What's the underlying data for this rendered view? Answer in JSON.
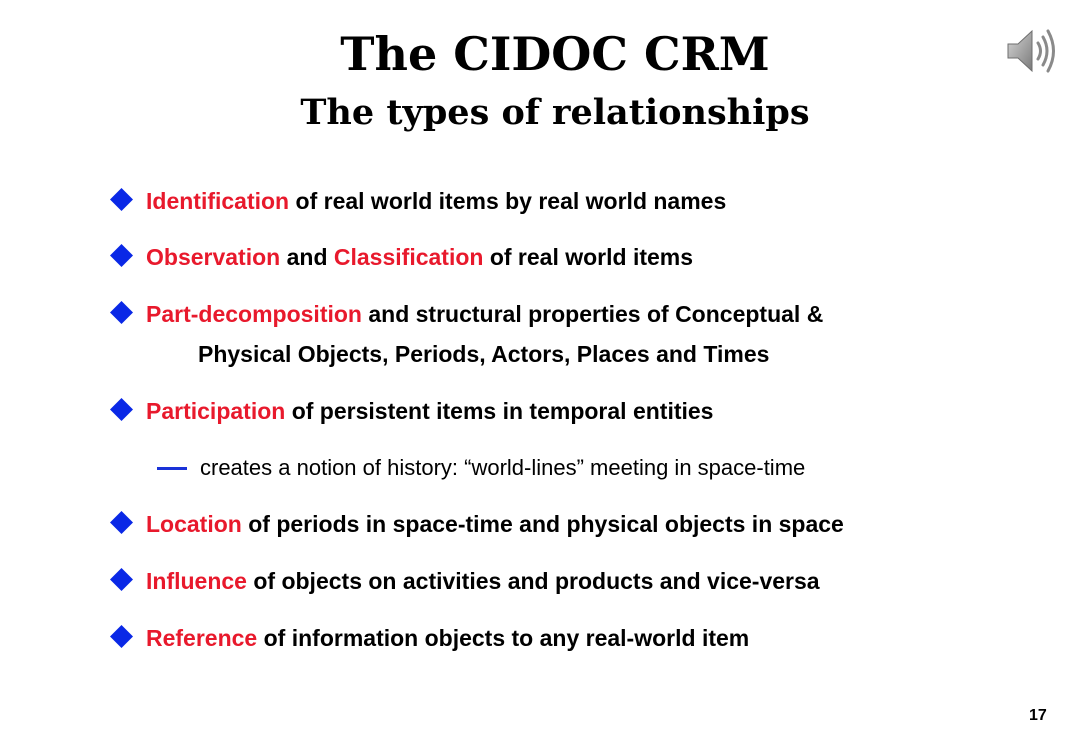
{
  "slide": {
    "title": "The CIDOC CRM",
    "subtitle": "The types of relationships",
    "page_number": "17",
    "speaker_icon": "speaker-audio-icon",
    "bullet_icon": "blue-diamond-icon",
    "colors": {
      "highlight": "#e8192c",
      "bullet": "#0a28e6",
      "text": "#000000"
    }
  },
  "bullets": [
    {
      "keyword": "Identification",
      "text": " of real world items by real world names"
    },
    {
      "keyword": "Observation",
      "mid": " and ",
      "keyword2": "Classification",
      "text": " of real world items"
    },
    {
      "keyword": "Part-decomposition",
      "text": " and structural properties of Conceptual &",
      "continuation": "Physical Objects, Periods, Actors, Places and Times"
    },
    {
      "keyword": "Participation",
      "text": " of persistent items in temporal entities"
    },
    {
      "keyword": "Location",
      "text": " of periods in space-time and physical objects in space"
    },
    {
      "keyword": "Influence",
      "text": " of objects on activities and products and vice-versa"
    },
    {
      "keyword": "Reference",
      "text": " of information objects to any real-world item"
    }
  ],
  "sub_bullet": {
    "text": "creates a notion of history: “world-lines” meeting in space-time"
  }
}
